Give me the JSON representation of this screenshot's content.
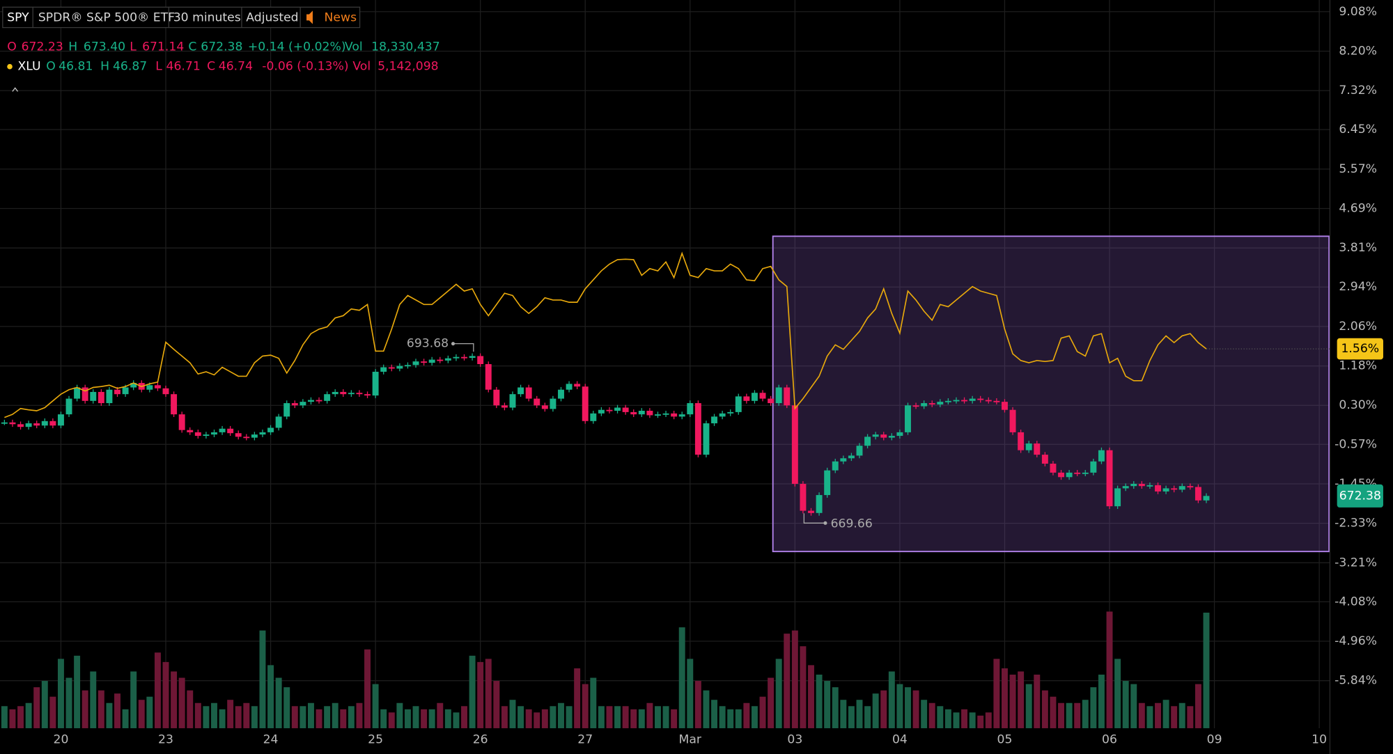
{
  "toolbar": {
    "symbol": "SPY",
    "name": "SPDR® S&P 500® ETF",
    "interval": "30 minutes",
    "adjustment": "Adjusted",
    "news": "News"
  },
  "legend": {
    "spy": {
      "o": "O",
      "open": "672.23",
      "h": "H",
      "high": "673.40",
      "l": "L",
      "low": "671.14",
      "c": "C",
      "close": "672.38",
      "change": "+0.14 (+0.02%)",
      "vol_label": "Vol",
      "volume": "18,330,437"
    },
    "xlu": {
      "symbol": "XLU",
      "o": "O",
      "open": "46.81",
      "h": "H",
      "high": "46.87",
      "l": "L",
      "low": "46.71",
      "c": "C",
      "close": "46.74",
      "change": "-0.06 (-0.13%)",
      "vol_label": "Vol",
      "volume": "5,142,098"
    }
  },
  "chart_data": {
    "type": "candlestick",
    "grid": true,
    "xlim": [
      0,
      163
    ],
    "xticks": [
      {
        "value": 7,
        "label": "20"
      },
      {
        "value": 20,
        "label": "23"
      },
      {
        "value": 33,
        "label": "24"
      },
      {
        "value": 46,
        "label": "25"
      },
      {
        "value": 59,
        "label": "26"
      },
      {
        "value": 72,
        "label": "27"
      },
      {
        "value": 85,
        "label": "Mar"
      },
      {
        "value": 98,
        "label": "03"
      },
      {
        "value": 111,
        "label": "04"
      },
      {
        "value": 124,
        "label": "05"
      },
      {
        "value": 137,
        "label": "06"
      },
      {
        "value": 150,
        "label": "09"
      },
      {
        "value": 163,
        "label": "10"
      }
    ],
    "ylim": [
      -6.9,
      9.34
    ],
    "yticks": [
      {
        "value": 9.08,
        "label": "9.08%"
      },
      {
        "value": 8.2,
        "label": "8.20%"
      },
      {
        "value": 7.32,
        "label": "7.32%"
      },
      {
        "value": 6.45,
        "label": "6.45%"
      },
      {
        "value": 5.57,
        "label": "5.57%"
      },
      {
        "value": 4.69,
        "label": "4.69%"
      },
      {
        "value": 3.81,
        "label": "3.81%"
      },
      {
        "value": 2.94,
        "label": "2.94%"
      },
      {
        "value": 2.06,
        "label": "2.06%"
      },
      {
        "value": 1.18,
        "label": "1.18%"
      },
      {
        "value": 0.3,
        "label": "0.30%"
      },
      {
        "value": -0.57,
        "label": "-0.57%"
      },
      {
        "value": -1.45,
        "label": "-1.45%"
      },
      {
        "value": -2.33,
        "label": "-2.33%"
      },
      {
        "value": -3.21,
        "label": "-3.21%"
      },
      {
        "value": -4.08,
        "label": "-4.08%"
      },
      {
        "value": -4.96,
        "label": "-4.96%"
      },
      {
        "value": -5.84,
        "label": "-5.84%"
      }
    ],
    "series": [
      {
        "name": "SPY",
        "up_color": "#19b38a",
        "down_color": "#f0185e",
        "last_label": "672.38",
        "values": [
          -0.08,
          -0.12,
          -0.18,
          -0.1,
          -0.15,
          -0.05,
          -0.15,
          0.1,
          0.45,
          0.7,
          0.4,
          0.6,
          0.35,
          0.65,
          0.55,
          0.7,
          0.8,
          0.65,
          0.75,
          0.68,
          0.55,
          0.1,
          -0.25,
          -0.3,
          -0.38,
          -0.35,
          -0.3,
          -0.22,
          -0.32,
          -0.4,
          -0.42,
          -0.35,
          -0.3,
          -0.2,
          0.05,
          0.35,
          0.3,
          0.38,
          0.42,
          0.4,
          0.55,
          0.6,
          0.55,
          0.58,
          0.55,
          0.52,
          1.05,
          1.15,
          1.12,
          1.18,
          1.2,
          1.28,
          1.25,
          1.32,
          1.3,
          1.35,
          1.38,
          1.36,
          1.4,
          1.22,
          0.65,
          0.3,
          0.25,
          0.55,
          0.7,
          0.45,
          0.3,
          0.22,
          0.45,
          0.65,
          0.78,
          0.72,
          -0.05,
          0.12,
          0.2,
          0.18,
          0.25,
          0.15,
          0.1,
          0.18,
          0.08,
          0.1,
          0.12,
          0.05,
          0.1,
          0.35,
          -0.8,
          -0.1,
          0.05,
          0.12,
          0.15,
          0.5,
          0.4,
          0.58,
          0.45,
          0.35,
          0.7,
          0.3,
          -1.45,
          -2.05,
          -2.1,
          -1.7,
          -1.15,
          -0.95,
          -0.88,
          -0.82,
          -0.6,
          -0.4,
          -0.35,
          -0.42,
          -0.38,
          -0.3,
          0.3,
          0.28,
          0.35,
          0.32,
          0.38,
          0.4,
          0.42,
          0.4,
          0.45,
          0.42,
          0.4,
          0.38,
          0.2,
          -0.3,
          -0.7,
          -0.55,
          -0.8,
          -1.0,
          -1.2,
          -1.3,
          -1.2,
          -1.22,
          -1.2,
          -0.95,
          -0.7,
          -1.95,
          -1.55,
          -1.5,
          -1.45,
          -1.5,
          -1.48,
          -1.62,
          -1.55,
          -1.58,
          -1.5,
          -1.52,
          -1.82,
          -1.72
        ]
      },
      {
        "name": "XLU",
        "color": "#e8a90c",
        "last_label": "1.56%",
        "values": [
          0.03,
          0.1,
          0.23,
          0.2,
          0.18,
          0.25,
          0.4,
          0.55,
          0.65,
          0.7,
          0.62,
          0.7,
          0.72,
          0.75,
          0.68,
          0.72,
          0.8,
          0.72,
          0.78,
          0.82,
          1.71,
          1.55,
          1.4,
          1.25,
          1.0,
          1.05,
          0.98,
          1.15,
          1.05,
          0.95,
          0.95,
          1.25,
          1.4,
          1.42,
          1.35,
          1.02,
          1.3,
          1.65,
          1.9,
          2.0,
          2.05,
          2.25,
          2.3,
          2.45,
          2.42,
          2.55,
          1.51,
          1.51,
          2.0,
          2.55,
          2.75,
          2.65,
          2.55,
          2.55,
          2.7,
          2.85,
          3.0,
          2.85,
          2.9,
          2.55,
          2.3,
          2.55,
          2.8,
          2.75,
          2.5,
          2.35,
          2.5,
          2.7,
          2.65,
          2.65,
          2.6,
          2.6,
          2.9,
          3.1,
          3.3,
          3.45,
          3.55,
          3.56,
          3.55,
          3.2,
          3.35,
          3.3,
          3.5,
          3.15,
          3.69,
          3.2,
          3.15,
          3.35,
          3.3,
          3.3,
          3.45,
          3.35,
          3.1,
          3.08,
          3.35,
          3.4,
          3.1,
          2.95,
          0.23,
          0.45,
          0.7,
          0.95,
          1.4,
          1.65,
          1.55,
          1.75,
          1.95,
          2.25,
          2.45,
          2.9,
          2.35,
          1.91,
          2.85,
          2.65,
          2.4,
          2.2,
          2.55,
          2.5,
          2.65,
          2.8,
          2.95,
          2.85,
          2.8,
          2.75,
          2.0,
          1.45,
          1.3,
          1.25,
          1.3,
          1.28,
          1.3,
          1.8,
          1.85,
          1.5,
          1.4,
          1.85,
          1.9,
          1.25,
          1.35,
          0.95,
          0.85,
          0.85,
          1.3,
          1.65,
          1.85,
          1.7,
          1.85,
          1.9,
          1.7,
          1.56
        ]
      }
    ],
    "volume": {
      "ylim": [
        0,
        30
      ],
      "up_color": "#1b6048",
      "down_color": "#6e1735",
      "values": [
        3.5,
        3.0,
        3.5,
        4.0,
        6.5,
        7.5,
        5.0,
        11.0,
        8.0,
        11.5,
        6.0,
        9.0,
        6.0,
        4.0,
        5.5,
        3.0,
        9.0,
        4.5,
        5.0,
        12.0,
        10.5,
        9.0,
        8.0,
        6.0,
        4.0,
        3.5,
        4.0,
        3.0,
        4.5,
        3.5,
        4.0,
        3.5,
        15.5,
        10.0,
        8.0,
        6.5,
        3.5,
        3.5,
        4.0,
        3.0,
        3.5,
        4.0,
        3.0,
        3.5,
        4.0,
        12.5,
        7.0,
        3.0,
        2.5,
        4.0,
        3.0,
        3.5,
        3.0,
        3.0,
        4.0,
        3.0,
        2.5,
        3.5,
        11.5,
        10.5,
        11.0,
        7.5,
        3.5,
        4.5,
        3.5,
        3.0,
        2.5,
        3.0,
        3.5,
        4.0,
        3.5,
        9.5,
        7.0,
        8.0,
        3.5,
        3.5,
        3.5,
        3.5,
        3.0,
        3.0,
        4.0,
        3.5,
        3.5,
        3.0,
        16.0,
        11.0,
        7.5,
        6.0,
        4.5,
        3.5,
        3.0,
        3.0,
        4.0,
        3.5,
        5.0,
        8.0,
        11.0,
        15.0,
        15.5,
        13.0,
        10.0,
        8.5,
        7.5,
        6.5,
        4.5,
        3.5,
        4.5,
        3.5,
        5.5,
        6.0,
        9.0,
        7.0,
        6.5,
        6.0,
        4.5,
        4.0,
        3.5,
        3.0,
        2.5,
        3.0,
        2.5,
        2.0,
        2.5,
        11.0,
        9.5,
        8.5,
        9.0,
        7.0,
        8.5,
        6.0,
        5.0,
        4.0,
        4.0,
        4.0,
        4.5,
        6.5,
        8.5,
        18.5,
        11.0,
        7.5,
        7.0,
        4.0,
        3.5,
        4.0,
        4.5,
        3.5,
        4.0,
        3.5,
        7.0,
        18.33
      ]
    },
    "annotations": [
      "693.68",
      "669.66"
    ]
  }
}
